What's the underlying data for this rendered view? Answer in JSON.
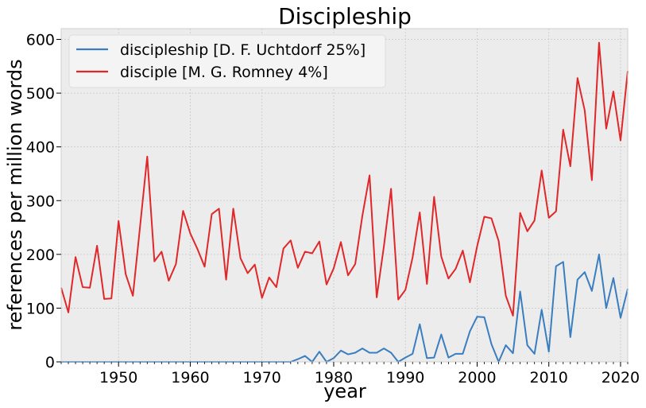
{
  "chart_data": {
    "type": "line",
    "title": "Discipleship",
    "xlabel": "year",
    "ylabel": "references per million words",
    "xlim": [
      1942,
      2021
    ],
    "ylim": [
      0,
      620
    ],
    "xticks": [
      1950,
      1960,
      1970,
      1980,
      1990,
      2000,
      2010,
      2020
    ],
    "yticks": [
      0,
      100,
      200,
      300,
      400,
      500,
      600
    ],
    "grid": true,
    "legend_position": "top-left",
    "x": [
      1942,
      1943,
      1944,
      1945,
      1946,
      1947,
      1948,
      1949,
      1950,
      1951,
      1952,
      1953,
      1954,
      1955,
      1956,
      1957,
      1958,
      1959,
      1960,
      1961,
      1962,
      1963,
      1964,
      1965,
      1966,
      1967,
      1968,
      1969,
      1970,
      1971,
      1972,
      1973,
      1974,
      1975,
      1976,
      1977,
      1978,
      1979,
      1980,
      1981,
      1982,
      1983,
      1984,
      1985,
      1986,
      1987,
      1988,
      1989,
      1990,
      1991,
      1992,
      1993,
      1994,
      1995,
      1996,
      1997,
      1998,
      1999,
      2000,
      2001,
      2002,
      2003,
      2004,
      2005,
      2006,
      2007,
      2008,
      2009,
      2010,
      2011,
      2012,
      2013,
      2014,
      2015,
      2016,
      2017,
      2018,
      2019,
      2020,
      2021
    ],
    "series": [
      {
        "name": "discipleship [D. F. Uchtdorf 25%]",
        "color": "#3a7ebf",
        "values": [
          0,
          0,
          0,
          0,
          0,
          0,
          0,
          0,
          0,
          0,
          0,
          0,
          0,
          0,
          0,
          0,
          0,
          0,
          0,
          0,
          0,
          0,
          0,
          0,
          0,
          0,
          0,
          0,
          0,
          0,
          0,
          0,
          0,
          5,
          11,
          0,
          19,
          0,
          7,
          21,
          14,
          17,
          25,
          17,
          17,
          25,
          17,
          0,
          8,
          15,
          70,
          7,
          8,
          51,
          8,
          15,
          15,
          57,
          84,
          83,
          33,
          0,
          31,
          16,
          131,
          31,
          15,
          97,
          19,
          178,
          186,
          46,
          153,
          167,
          132,
          200,
          100,
          156,
          82,
          136
        ]
      },
      {
        "name": "disciple [M. G. Romney 4%]",
        "color": "#e0282a",
        "values": [
          138,
          92,
          195,
          139,
          138,
          216,
          117,
          118,
          262,
          163,
          123,
          252,
          382,
          187,
          205,
          151,
          182,
          281,
          239,
          210,
          177,
          275,
          285,
          153,
          285,
          193,
          165,
          181,
          119,
          157,
          139,
          211,
          226,
          175,
          205,
          202,
          224,
          144,
          174,
          223,
          161,
          182,
          272,
          347,
          120,
          215,
          322,
          116,
          134,
          194,
          278,
          145,
          307,
          196,
          155,
          173,
          207,
          148,
          215,
          270,
          267,
          225,
          123,
          86,
          277,
          243,
          263,
          356,
          268,
          280,
          432,
          364,
          528,
          468,
          338,
          594,
          434,
          503,
          412,
          541
        ]
      }
    ]
  }
}
